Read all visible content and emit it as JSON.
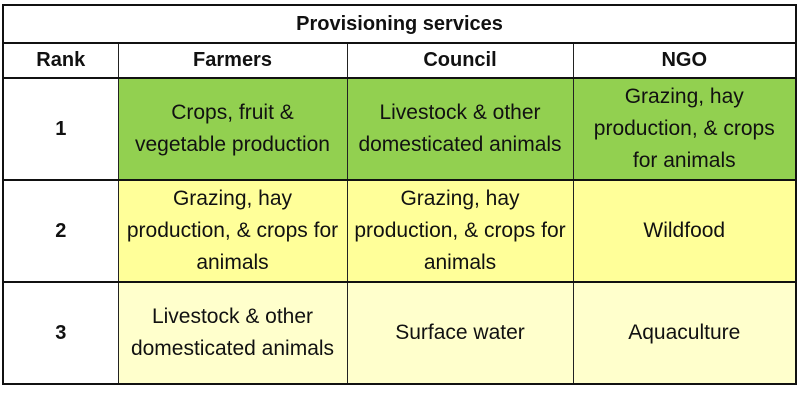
{
  "table": {
    "title": "Provisioning services",
    "headers": [
      "Rank",
      "Farmers",
      "Council",
      "NGO"
    ],
    "rows": [
      {
        "rank": "1",
        "cells": [
          "Crops, fruit & vegetable production",
          "Livestock & other domesticated animals",
          "Grazing, hay production, & crops for animals"
        ],
        "colors": [
          "#92d050",
          "#92d050",
          "#92d050"
        ]
      },
      {
        "rank": "2",
        "cells": [
          "Grazing, hay production, & crops for animals",
          "Grazing, hay production, & crops for animals",
          "Wildfood"
        ],
        "colors": [
          "#ffff99",
          "#ffff99",
          "#ffff99"
        ]
      },
      {
        "rank": "3",
        "cells": [
          "Livestock & other domesticated animals",
          "Surface water",
          "Aquaculture"
        ],
        "colors": [
          "#ffffcc",
          "#ffffcc",
          "#ffffcc"
        ]
      }
    ]
  }
}
